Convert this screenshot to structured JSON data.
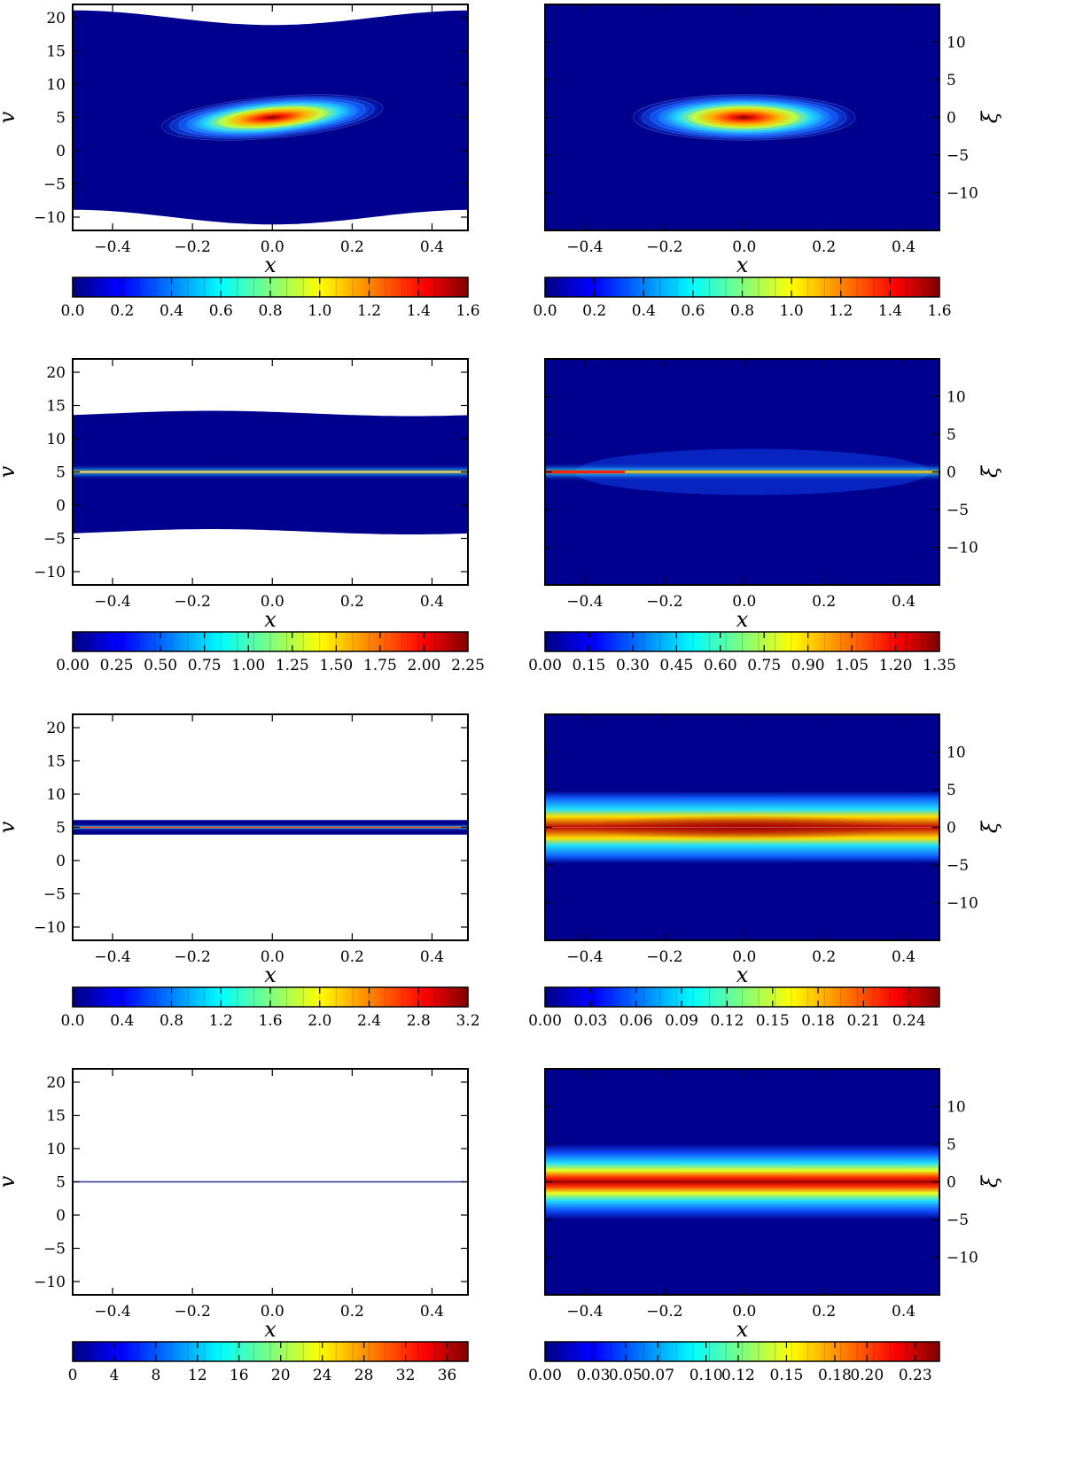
{
  "chart_data": {
    "type": "heatmap",
    "colormap": "jet",
    "x_ticks": [
      "−0.4",
      "−0.2",
      "0.0",
      "0.2",
      "0.4"
    ],
    "x_label": "x",
    "xlim": [
      -0.5,
      0.49
    ],
    "left_y_label": "v",
    "left_ylim": [
      -12,
      22
    ],
    "left_y_ticks": [
      "20",
      "15",
      "10",
      "5",
      "0",
      "−5",
      "−10"
    ],
    "right_y_label": "ξ",
    "right_ylim": [
      -15,
      15
    ],
    "right_y_ticks": [
      "10",
      "5",
      "0",
      "−5",
      "−10"
    ],
    "rows": [
      {
        "left": {
          "colorbar_ticks": [
            "0.0",
            "0.2",
            "0.4",
            "0.6",
            "0.8",
            "1.0",
            "1.2",
            "1.4",
            "1.6"
          ],
          "colorbar_max": 1.6
        },
        "right": {
          "colorbar_ticks": [
            "0.0",
            "0.2",
            "0.4",
            "0.6",
            "0.8",
            "1.0",
            "1.2",
            "1.4",
            "1.6"
          ],
          "colorbar_max": 1.6
        }
      },
      {
        "left": {
          "colorbar_ticks": [
            "0.00",
            "0.25",
            "0.50",
            "0.75",
            "1.00",
            "1.25",
            "1.50",
            "1.75",
            "2.00",
            "2.25"
          ],
          "colorbar_max": 2.25
        },
        "right": {
          "colorbar_ticks": [
            "0.00",
            "0.15",
            "0.30",
            "0.45",
            "0.60",
            "0.75",
            "0.90",
            "1.05",
            "1.20",
            "1.35"
          ],
          "colorbar_max": 1.35
        }
      },
      {
        "left": {
          "colorbar_ticks": [
            "0.0",
            "0.4",
            "0.8",
            "1.2",
            "1.6",
            "2.0",
            "2.4",
            "2.8",
            "3.2"
          ],
          "colorbar_max": 3.2
        },
        "right": {
          "colorbar_ticks": [
            "0.00",
            "0.03",
            "0.06",
            "0.09",
            "0.12",
            "0.15",
            "0.18",
            "0.21",
            "0.24"
          ],
          "colorbar_max": 0.26
        }
      },
      {
        "left": {
          "colorbar_ticks": [
            "0",
            "4",
            "8",
            "12",
            "16",
            "20",
            "24",
            "28",
            "32",
            "36"
          ],
          "colorbar_max": 38
        },
        "right": {
          "colorbar_ticks": [
            "0.00",
            "0.03",
            "0.05",
            "0.07",
            "0.10",
            "0.12",
            "0.15",
            "0.18",
            "0.20",
            "0.23"
          ],
          "colorbar_max": 0.245
        }
      }
    ]
  }
}
